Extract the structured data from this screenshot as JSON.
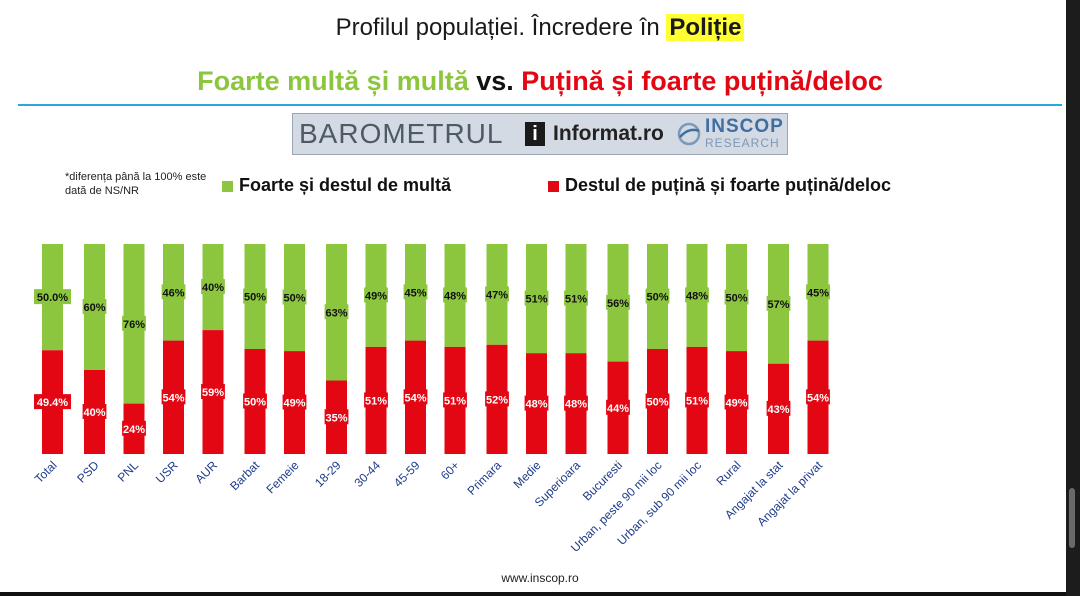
{
  "header": {
    "title_prefix": "Profilul populației. Încredere în ",
    "title_highlight": "Poliție",
    "subtitle_left": "Foarte multă și multă",
    "subtitle_vs": "vs.",
    "subtitle_right": "Puțină și foarte puțină/deloc"
  },
  "logos": {
    "barometrul": "BAROMETRUL",
    "informat": "Informat.ro",
    "inscop": "INSCOP",
    "research": "RESEARCH"
  },
  "note": "*diferența până la 100% este dată de NS/NR",
  "footer": "www.inscop.ro",
  "colors": {
    "green": "#8cc63f",
    "red": "#e30613",
    "accent": "#2aa6e0",
    "highlight": "#ffff33"
  },
  "chart_data": {
    "type": "bar",
    "stacked": true,
    "categories": [
      "Total",
      "PSD",
      "PNL",
      "USR",
      "AUR",
      "Barbat",
      "Femeie",
      "18-29",
      "30-44",
      "45-59",
      "60+",
      "Primara",
      "Medie",
      "Superioara",
      "Bucuresti",
      "Urban, peste 90 mii loc",
      "Urban, sub 90 mii loc",
      "Rural",
      "Angajat la stat",
      "Angajat la privat"
    ],
    "groups": [
      [
        0
      ],
      [
        1,
        2,
        3,
        4
      ],
      [
        5,
        6
      ],
      [
        7,
        8,
        9,
        10
      ],
      [
        11,
        12,
        13
      ],
      [
        14,
        15,
        16,
        17
      ],
      [
        18,
        19
      ]
    ],
    "series": [
      {
        "name": "Foarte și destul de multă",
        "color": "#8cc63f",
        "position": "top",
        "values": [
          50.0,
          60,
          76,
          46,
          40,
          50,
          50,
          63,
          49,
          45,
          48,
          47,
          51,
          51,
          56,
          50,
          48,
          50,
          57,
          45
        ],
        "labels": [
          "50.0%",
          "60%",
          "76%",
          "46%",
          "40%",
          "50%",
          "50%",
          "63%",
          "49%",
          "45%",
          "48%",
          "47%",
          "51%",
          "51%",
          "56%",
          "50%",
          "48%",
          "50%",
          "57%",
          "45%"
        ]
      },
      {
        "name": "Destul de puțină și foarte puțină/deloc",
        "color": "#e30613",
        "position": "bottom",
        "values": [
          49.4,
          40,
          24,
          54,
          59,
          50,
          49,
          35,
          51,
          54,
          51,
          52,
          48,
          48,
          44,
          50,
          51,
          49,
          43,
          54
        ],
        "labels": [
          "49.4%",
          "40%",
          "24%",
          "54%",
          "59%",
          "50%",
          "49%",
          "35%",
          "51%",
          "54%",
          "51%",
          "52%",
          "48%",
          "48%",
          "44%",
          "50%",
          "51%",
          "49%",
          "43%",
          "54%"
        ]
      }
    ],
    "ylim": [
      0,
      100
    ],
    "legend_position": "top",
    "grid": false
  }
}
